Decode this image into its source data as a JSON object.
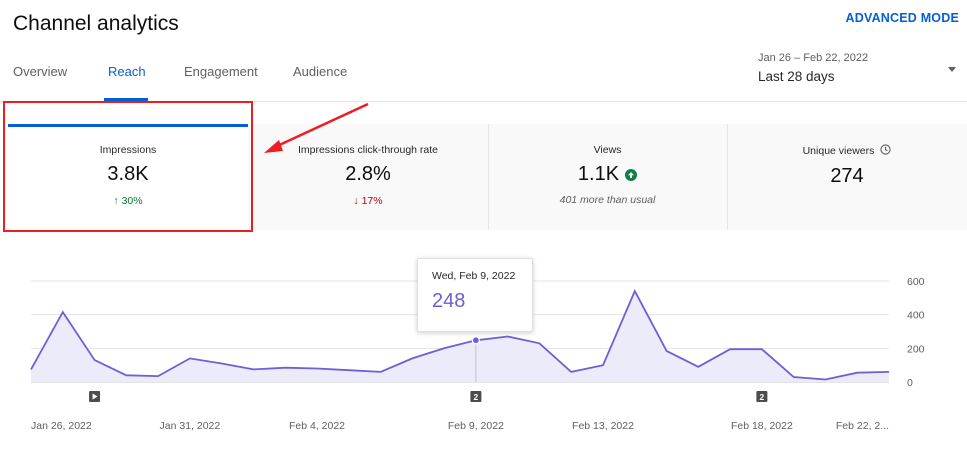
{
  "header": {
    "title": "Channel analytics",
    "advanced_mode": "ADVANCED MODE"
  },
  "tabs": [
    {
      "label": "Overview",
      "active": false
    },
    {
      "label": "Reach",
      "active": true
    },
    {
      "label": "Engagement",
      "active": false
    },
    {
      "label": "Audience",
      "active": false
    }
  ],
  "date_range": {
    "range": "Jan 26 – Feb 22, 2022",
    "period": "Last 28 days"
  },
  "metrics": [
    {
      "label": "Impressions",
      "value": "3.8K",
      "delta": "30%",
      "direction": "up"
    },
    {
      "label": "Impressions click-through rate",
      "value": "2.8%",
      "delta": "17%",
      "direction": "down"
    },
    {
      "label": "Views",
      "value": "1.1K",
      "note": "401 more than usual"
    },
    {
      "label": "Unique viewers",
      "value": "274"
    }
  ],
  "tooltip": {
    "date": "Wed, Feb 9, 2022",
    "value": "248"
  },
  "chart_data": {
    "type": "area",
    "series": [
      {
        "values": [
          75,
          415,
          130,
          40,
          35,
          140,
          110,
          75,
          85,
          80,
          70,
          60,
          140,
          200,
          248,
          270,
          230,
          60,
          100,
          540,
          185,
          90,
          195,
          195,
          30,
          15,
          55,
          60
        ]
      }
    ],
    "ylim": [
      0,
      600
    ],
    "y_ticks": [
      "0",
      "200",
      "400",
      "600"
    ],
    "x_tick_labels": [
      "Jan 26, 2022",
      "Jan 31, 2022",
      "Feb 4, 2022",
      "Feb 9, 2022",
      "Feb 13, 2022",
      "Feb 18, 2022",
      "Feb 22, 2..."
    ],
    "x_tick_index": [
      0,
      5,
      9,
      14,
      18,
      23,
      27
    ],
    "highlight_index": 14,
    "markers": [
      {
        "index": 2,
        "kind": "play-icon"
      },
      {
        "index": 14,
        "label": "2"
      },
      {
        "index": 23,
        "label": "2"
      }
    ],
    "colors": {
      "line": "#6e5fd7",
      "fill": "#ecebf9",
      "grid": "#e5e5e5"
    }
  }
}
